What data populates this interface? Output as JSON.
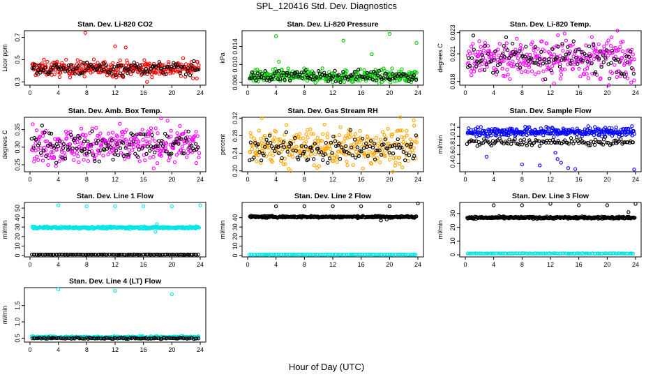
{
  "figure": {
    "title": "SPL_120416  Std. Dev. Diagnostics",
    "xlabel": "Hour of Day (UTC)"
  },
  "chart_data": [
    {
      "type": "scatter",
      "title": "Stan. Dev. Li-820 CO2",
      "ylabel": "Licor ppm",
      "xlim": [
        0,
        24
      ],
      "ylim": [
        0.27,
        0.76
      ],
      "xticks": [
        "0",
        "4",
        "8",
        "12",
        "16",
        "20",
        "24"
      ],
      "yticks": [
        {
          "v": 0.3,
          "t": "0.3"
        },
        {
          "v": 0.5,
          "t": "0.5"
        },
        {
          "v": 0.7,
          "t": "0.7"
        }
      ],
      "colors": {
        "series_a": "#ff0000",
        "series_b": "#000000"
      },
      "series": [
        {
          "color": "#ff0000",
          "center": 0.42,
          "spread": 0.035
        },
        {
          "color": "#000000",
          "center": 0.42,
          "spread": 0.03
        }
      ],
      "outliers": [
        {
          "x": 7.8,
          "y": 0.74
        },
        {
          "x": 12.0,
          "y": 0.62
        },
        {
          "x": 13.5,
          "y": 0.61
        },
        {
          "x": 16.5,
          "y": 0.3
        }
      ]
    },
    {
      "type": "scatter",
      "title": "Stan. Dev. Li-820 Pressure",
      "ylabel": "kPa",
      "xlim": [
        0,
        24
      ],
      "ylim": [
        0.0054,
        0.0175
      ],
      "xticks": [
        "0",
        "4",
        "8",
        "12",
        "16",
        "20",
        "24"
      ],
      "yticks": [
        {
          "v": 0.006,
          "t": "0.006"
        },
        {
          "v": 0.01,
          "t": "0.010"
        },
        {
          "v": 0.014,
          "t": "0.014"
        }
      ],
      "colors": {
        "series_a": "#00cc00",
        "series_b": "#000000"
      },
      "series": [
        {
          "color": "#00cc00",
          "center": 0.0074,
          "spread": 0.0007
        },
        {
          "color": "#000000",
          "center": 0.0075,
          "spread": 0.0006
        }
      ],
      "outliers": [
        {
          "x": 4.0,
          "y": 0.0163
        },
        {
          "x": 4.4,
          "y": 0.0106
        },
        {
          "x": 13.5,
          "y": 0.0153
        },
        {
          "x": 17.5,
          "y": 0.0123
        },
        {
          "x": 20.0,
          "y": 0.0168
        },
        {
          "x": 23.8,
          "y": 0.0148
        }
      ]
    },
    {
      "type": "scatter",
      "title": "Stan. Dev. Li-820 Temp.",
      "ylabel": "degrees C",
      "xlim": [
        0,
        24
      ],
      "ylim": [
        0.0176,
        0.0235
      ],
      "xticks": [
        "0",
        "4",
        "8",
        "12",
        "16",
        "20",
        "24"
      ],
      "yticks": [
        {
          "v": 0.018,
          "t": "0.018"
        },
        {
          "v": 0.021,
          "t": "0.021"
        },
        {
          "v": 0.0233,
          "t": "0.023"
        }
      ],
      "colors": {
        "series_a": "#ff00ff",
        "series_b": "#000000"
      },
      "series": [
        {
          "color": "#ff00ff",
          "center": 0.0205,
          "spread": 0.0011
        },
        {
          "color": "#000000",
          "center": 0.0205,
          "spread": 0.0009
        }
      ],
      "outliers": [
        {
          "x": 12.5,
          "y": 0.0178
        },
        {
          "x": 14.0,
          "y": 0.0232
        },
        {
          "x": 21.5,
          "y": 0.0191
        }
      ]
    },
    {
      "type": "scatter",
      "title": "Stan. Dev. Amb. Box Temp.",
      "ylabel": "degrees C",
      "xlim": [
        0,
        24
      ],
      "ylim": [
        0.23,
        0.385
      ],
      "xticks": [
        "0",
        "4",
        "8",
        "12",
        "16",
        "20",
        "24"
      ],
      "yticks": [
        {
          "v": 0.25,
          "t": "0.25"
        },
        {
          "v": 0.3,
          "t": "0.30"
        },
        {
          "v": 0.35,
          "t": "0.35"
        }
      ],
      "colors": {
        "series_a": "#ff00ff",
        "series_b": "#000000"
      },
      "series": [
        {
          "color": "#ff00ff",
          "center": 0.305,
          "spread": 0.025
        },
        {
          "color": "#000000",
          "center": 0.305,
          "spread": 0.02
        }
      ],
      "outliers": [
        {
          "x": 18.5,
          "y": 0.382
        }
      ]
    },
    {
      "type": "scatter",
      "title": "Stan. Dev. Gas Stream RH",
      "ylabel": "percent",
      "xlim": [
        0,
        24
      ],
      "ylim": [
        0.198,
        0.322
      ],
      "xticks": [
        "0",
        "4",
        "8",
        "12",
        "16",
        "20",
        "24"
      ],
      "yticks": [
        {
          "v": 0.2,
          "t": "0.20"
        },
        {
          "v": 0.24,
          "t": "0.24"
        },
        {
          "v": 0.28,
          "t": "0.28"
        },
        {
          "v": 0.32,
          "t": "0.32"
        }
      ],
      "colors": {
        "series_a": "#ffa500",
        "series_b": "#000000"
      },
      "series": [
        {
          "color": "#ffa500",
          "center": 0.255,
          "spread": 0.022
        },
        {
          "color": "#000000",
          "center": 0.25,
          "spread": 0.015
        }
      ],
      "outliers": [
        {
          "x": 2.0,
          "y": 0.32
        },
        {
          "x": 21.5,
          "y": 0.322
        }
      ]
    },
    {
      "type": "scatter",
      "title": "Stan. Dev. Sample Flow",
      "ylabel": "ml/min",
      "xlim": [
        0,
        24
      ],
      "ylim": [
        0.22,
        1.42
      ],
      "xticks": [
        "0",
        "4",
        "8",
        "12",
        "16",
        "20",
        "24"
      ],
      "yticks": [
        {
          "v": 0.4,
          "t": "0.4"
        },
        {
          "v": 0.6,
          "t": "0.6"
        },
        {
          "v": 0.8,
          "t": "0.8"
        },
        {
          "v": 1.0,
          "t": "1.0"
        },
        {
          "v": 1.2,
          "t": "1.2"
        }
      ],
      "colors": {
        "series_a": "#0000ff",
        "series_b": "#000000"
      },
      "series": [
        {
          "color": "#0000ff",
          "center": 1.1,
          "spread": 0.05
        },
        {
          "color": "#000000",
          "center": 0.87,
          "spread": 0.04
        }
      ],
      "outliers": [
        {
          "x": 3.0,
          "y": 0.55
        },
        {
          "x": 8.0,
          "y": 0.38
        },
        {
          "x": 10.5,
          "y": 0.36
        },
        {
          "x": 12.7,
          "y": 0.64
        },
        {
          "x": 13.0,
          "y": 0.5
        },
        {
          "x": 13.5,
          "y": 0.42
        },
        {
          "x": 14.5,
          "y": 0.3
        },
        {
          "x": 15.5,
          "y": 0.28
        },
        {
          "x": 23.8,
          "y": 0.27
        }
      ]
    },
    {
      "type": "scatter",
      "title": "Stan. Dev. Line 1 Flow",
      "ylabel": "ml/min",
      "xlim": [
        0,
        24
      ],
      "ylim": [
        -1.5,
        56
      ],
      "xticks": [
        "0",
        "4",
        "8",
        "12",
        "16",
        "20",
        "24"
      ],
      "yticks": [
        {
          "v": 0,
          "t": "0"
        },
        {
          "v": 10,
          "t": "10"
        },
        {
          "v": 20,
          "t": "20"
        },
        {
          "v": 30,
          "t": "30"
        },
        {
          "v": 40,
          "t": "40"
        },
        {
          "v": 50,
          "t": "50"
        }
      ],
      "colors": {
        "series_a": "#00e5e5",
        "series_b": "#000000"
      },
      "series": [
        {
          "color": "#00e5e5",
          "center": 29.5,
          "spread": 0.6
        },
        {
          "color": "#000000",
          "center": 1.0,
          "spread": 0.1
        }
      ],
      "outliers": [
        {
          "x": 4.0,
          "y": 53
        },
        {
          "x": 8.0,
          "y": 52
        },
        {
          "x": 12.0,
          "y": 52
        },
        {
          "x": 16.0,
          "y": 52
        },
        {
          "x": 20.0,
          "y": 52
        },
        {
          "x": 24.0,
          "y": 53
        },
        {
          "x": 17.7,
          "y": 25
        },
        {
          "x": 17.9,
          "y": 33
        }
      ]
    },
    {
      "type": "scatter",
      "title": "Stan. Dev. Line 2 Flow",
      "ylabel": "ml/min",
      "xlim": [
        0,
        24
      ],
      "ylim": [
        -1.5,
        56
      ],
      "xticks": [
        "0",
        "4",
        "8",
        "12",
        "16",
        "20",
        "24"
      ],
      "yticks": [
        {
          "v": 0,
          "t": "0"
        },
        {
          "v": 10,
          "t": "10"
        },
        {
          "v": 20,
          "t": "20"
        },
        {
          "v": 30,
          "t": "30"
        },
        {
          "v": 40,
          "t": "40"
        }
      ],
      "colors": {
        "series_a": "#00e5e5",
        "series_b": "#000000"
      },
      "series": [
        {
          "color": "#000000",
          "center": 40.8,
          "spread": 0.5
        },
        {
          "color": "#00e5e5",
          "center": 1.0,
          "spread": 0.1
        }
      ],
      "outliers": [
        {
          "x": 4.0,
          "y": 52
        },
        {
          "x": 8.0,
          "y": 52
        },
        {
          "x": 12.0,
          "y": 52
        },
        {
          "x": 16.0,
          "y": 52
        },
        {
          "x": 20.0,
          "y": 52
        },
        {
          "x": 24.0,
          "y": 55
        },
        {
          "x": 18.8,
          "y": 37
        },
        {
          "x": 19.6,
          "y": 38
        }
      ]
    },
    {
      "type": "scatter",
      "title": "Stan. Dev. Line 3 Flow",
      "ylabel": "ml/min",
      "xlim": [
        0,
        24
      ],
      "ylim": [
        -1.5,
        38
      ],
      "xticks": [
        "0",
        "4",
        "8",
        "12",
        "16",
        "20",
        "24"
      ],
      "yticks": [
        {
          "v": 0,
          "t": "0"
        },
        {
          "v": 10,
          "t": "10"
        },
        {
          "v": 20,
          "t": "20"
        },
        {
          "v": 30,
          "t": "30"
        }
      ],
      "colors": {
        "series_a": "#00e5e5",
        "series_b": "#000000"
      },
      "series": [
        {
          "color": "#000000",
          "center": 27.0,
          "spread": 0.4
        },
        {
          "color": "#00e5e5",
          "center": 1.0,
          "spread": 0.1
        }
      ],
      "outliers": [
        {
          "x": 4.0,
          "y": 36
        },
        {
          "x": 8.0,
          "y": 36
        },
        {
          "x": 12.0,
          "y": 37
        },
        {
          "x": 16.0,
          "y": 36
        },
        {
          "x": 20.0,
          "y": 36
        },
        {
          "x": 24.0,
          "y": 37
        },
        {
          "x": 23.0,
          "y": 31
        }
      ]
    },
    {
      "type": "scatter",
      "title": "Stan. Dev. Line 4 (LT) Flow",
      "ylabel": "ml/min",
      "xlim": [
        0,
        24
      ],
      "ylim": [
        0.38,
        2.05
      ],
      "xticks": [
        "0",
        "4",
        "8",
        "12",
        "16",
        "20",
        "24"
      ],
      "yticks": [
        {
          "v": 0.5,
          "t": "0.5"
        },
        {
          "v": 1.0,
          "t": "1.0"
        },
        {
          "v": 1.5,
          "t": "1.5"
        }
      ],
      "colors": {
        "series_a": "#00e5e5",
        "series_b": "#000000"
      },
      "series": [
        {
          "color": "#00e5e5",
          "center": 0.53,
          "spread": 0.015
        },
        {
          "color": "#000000",
          "center": 0.5,
          "spread": 0.012
        }
      ],
      "outliers": [
        {
          "x": 4.0,
          "y": 2.0
        },
        {
          "x": 12.0,
          "y": 1.95
        },
        {
          "x": 20.0,
          "y": 1.85
        }
      ]
    }
  ]
}
